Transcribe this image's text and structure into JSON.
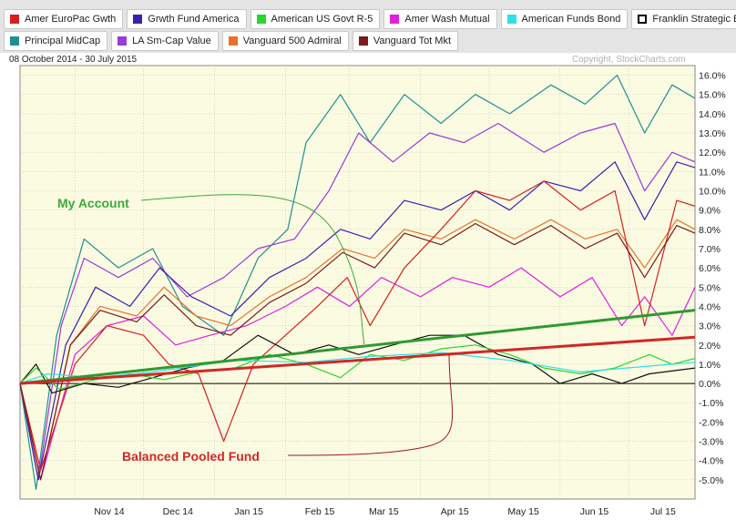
{
  "legend": {
    "row1": [
      {
        "label": "Amer EuroPac Gwth",
        "color": "#d81e1e"
      },
      {
        "label": "Grwth Fund America",
        "color": "#3b1fb0"
      },
      {
        "label": "American US Govt R-5",
        "color": "#2ad62a"
      },
      {
        "label": "Amer Wash Mutual",
        "color": "#e01ee0"
      },
      {
        "label": "American Funds Bond",
        "color": "#2ee0e8"
      },
      {
        "label": "Franklin Strategic B",
        "color": "#000000",
        "outline": true
      }
    ],
    "row2": [
      {
        "label": "Principal MidCap",
        "color": "#1e9090"
      },
      {
        "label": "LA Sm-Cap Value",
        "color": "#9a3ad8"
      },
      {
        "label": "Vanguard 500 Admiral",
        "color": "#e8722a"
      },
      {
        "label": "Vanguard Tot Mkt",
        "color": "#7a1a1a"
      }
    ]
  },
  "header": {
    "date_range": "08 October 2014 - 30 July 2015",
    "copyright": "Copyright, StockCharts.com"
  },
  "annotations": {
    "my_account": {
      "text": "My Account",
      "color": "#3aaa3a"
    },
    "balanced_fund": {
      "text": "Balanced Pooled Fund",
      "color": "#d02828"
    }
  },
  "colors": {
    "plot_bg": "#fbfbe2",
    "grid": "#bfbfbf",
    "zero_line": "#000000"
  },
  "chart_data": {
    "type": "line",
    "x_range": [
      "2014-10-08",
      "2015-07-30"
    ],
    "x_tick_labels": [
      "Nov 14",
      "Dec 14",
      "Jan 15",
      "Feb 15",
      "Mar 15",
      "Apr 15",
      "May 15",
      "Jun 15",
      "Jul 15"
    ],
    "x_tick_dates": [
      "2014-11-01",
      "2014-12-01",
      "2015-01-01",
      "2015-02-01",
      "2015-03-01",
      "2015-04-01",
      "2015-05-01",
      "2015-06-01",
      "2015-07-01"
    ],
    "ylim": [
      -6.0,
      16.5
    ],
    "y_ticks": [
      -5,
      -4,
      -3,
      -2,
      -1,
      0,
      1,
      2,
      3,
      4,
      5,
      6,
      7,
      8,
      9,
      10,
      11,
      12,
      13,
      14,
      15,
      16
    ],
    "y_tick_labels": [
      "-5.0%",
      "-4.0%",
      "-3.0%",
      "-2.0%",
      "-1.0%",
      "0.0%",
      "1.0%",
      "2.0%",
      "3.0%",
      "4.0%",
      "5.0%",
      "6.0%",
      "7.0%",
      "8.0%",
      "9.0%",
      "10.0%",
      "11.0%",
      "12.0%",
      "13.0%",
      "14.0%",
      "15.0%",
      "16.0%"
    ],
    "y_unit": "%",
    "y_axis_side": "right",
    "grid": true,
    "series": [
      {
        "name": "Principal MidCap",
        "color": "#1e9090",
        "points": [
          [
            "2014-10-08",
            0
          ],
          [
            "2014-10-15",
            -5.5
          ],
          [
            "2014-10-24",
            2.5
          ],
          [
            "2014-11-05",
            7.5
          ],
          [
            "2014-11-20",
            6.0
          ],
          [
            "2014-12-05",
            7.0
          ],
          [
            "2014-12-18",
            4.0
          ],
          [
            "2015-01-05",
            2.5
          ],
          [
            "2015-01-20",
            6.5
          ],
          [
            "2015-02-02",
            8.0
          ],
          [
            "2015-02-10",
            12.5
          ],
          [
            "2015-02-25",
            15.0
          ],
          [
            "2015-03-10",
            12.5
          ],
          [
            "2015-03-25",
            15.0
          ],
          [
            "2015-04-10",
            13.5
          ],
          [
            "2015-04-25",
            15.0
          ],
          [
            "2015-05-10",
            14.0
          ],
          [
            "2015-05-28",
            15.5
          ],
          [
            "2015-06-12",
            14.5
          ],
          [
            "2015-06-26",
            16.0
          ],
          [
            "2015-07-08",
            13.0
          ],
          [
            "2015-07-20",
            15.5
          ],
          [
            "2015-07-30",
            14.8
          ]
        ]
      },
      {
        "name": "LA Sm-Cap Value",
        "color": "#9a3ad8",
        "points": [
          [
            "2014-10-08",
            0
          ],
          [
            "2014-10-16",
            -5.0
          ],
          [
            "2014-10-26",
            3.0
          ],
          [
            "2014-11-05",
            6.5
          ],
          [
            "2014-11-20",
            5.5
          ],
          [
            "2014-12-05",
            6.5
          ],
          [
            "2014-12-20",
            4.5
          ],
          [
            "2015-01-05",
            5.5
          ],
          [
            "2015-01-20",
            7.0
          ],
          [
            "2015-02-05",
            7.5
          ],
          [
            "2015-02-20",
            10.0
          ],
          [
            "2015-03-05",
            13.0
          ],
          [
            "2015-03-20",
            11.5
          ],
          [
            "2015-04-05",
            13.0
          ],
          [
            "2015-04-20",
            12.5
          ],
          [
            "2015-05-05",
            13.5
          ],
          [
            "2015-05-25",
            12.0
          ],
          [
            "2015-06-10",
            13.0
          ],
          [
            "2015-06-25",
            13.5
          ],
          [
            "2015-07-08",
            10.0
          ],
          [
            "2015-07-20",
            12.0
          ],
          [
            "2015-07-30",
            11.5
          ]
        ]
      },
      {
        "name": "Grwth Fund America",
        "color": "#3b1fb0",
        "points": [
          [
            "2014-10-08",
            0
          ],
          [
            "2014-10-16",
            -5.0
          ],
          [
            "2014-10-28",
            2.0
          ],
          [
            "2014-11-10",
            5.0
          ],
          [
            "2014-11-25",
            4.0
          ],
          [
            "2014-12-08",
            6.0
          ],
          [
            "2014-12-22",
            4.5
          ],
          [
            "2015-01-08",
            3.5
          ],
          [
            "2015-01-25",
            5.5
          ],
          [
            "2015-02-10",
            6.5
          ],
          [
            "2015-02-25",
            8.0
          ],
          [
            "2015-03-10",
            7.5
          ],
          [
            "2015-03-25",
            9.5
          ],
          [
            "2015-04-10",
            9.0
          ],
          [
            "2015-04-25",
            10.0
          ],
          [
            "2015-05-10",
            9.0
          ],
          [
            "2015-05-25",
            10.5
          ],
          [
            "2015-06-10",
            10.0
          ],
          [
            "2015-06-25",
            11.5
          ],
          [
            "2015-07-08",
            8.5
          ],
          [
            "2015-07-22",
            11.5
          ],
          [
            "2015-07-30",
            11.2
          ]
        ]
      },
      {
        "name": "Vanguard 500 Admiral",
        "color": "#e8722a",
        "points": [
          [
            "2014-10-08",
            0
          ],
          [
            "2014-10-17",
            -5.0
          ],
          [
            "2014-10-30",
            2.0
          ],
          [
            "2014-11-12",
            4.0
          ],
          [
            "2014-11-28",
            3.5
          ],
          [
            "2014-12-10",
            5.0
          ],
          [
            "2014-12-24",
            3.5
          ],
          [
            "2015-01-08",
            3.0
          ],
          [
            "2015-01-25",
            4.5
          ],
          [
            "2015-02-10",
            5.5
          ],
          [
            "2015-02-26",
            7.0
          ],
          [
            "2015-03-12",
            6.5
          ],
          [
            "2015-03-25",
            8.0
          ],
          [
            "2015-04-10",
            7.5
          ],
          [
            "2015-04-25",
            8.5
          ],
          [
            "2015-05-12",
            7.5
          ],
          [
            "2015-05-28",
            8.5
          ],
          [
            "2015-06-12",
            7.5
          ],
          [
            "2015-06-26",
            8.0
          ],
          [
            "2015-07-08",
            6.0
          ],
          [
            "2015-07-22",
            8.5
          ],
          [
            "2015-07-30",
            8.0
          ]
        ]
      },
      {
        "name": "Amer Wash Mutual",
        "color": "#e01ee0",
        "points": [
          [
            "2014-10-08",
            0
          ],
          [
            "2014-10-17",
            -5.0
          ],
          [
            "2014-11-01",
            1.5
          ],
          [
            "2014-11-15",
            3.0
          ],
          [
            "2014-12-01",
            3.5
          ],
          [
            "2014-12-15",
            2.0
          ],
          [
            "2014-12-30",
            2.5
          ],
          [
            "2015-01-15",
            3.0
          ],
          [
            "2015-02-01",
            4.0
          ],
          [
            "2015-02-15",
            5.0
          ],
          [
            "2015-03-01",
            4.0
          ],
          [
            "2015-03-15",
            5.5
          ],
          [
            "2015-04-01",
            4.5
          ],
          [
            "2015-04-15",
            5.5
          ],
          [
            "2015-05-01",
            5.0
          ],
          [
            "2015-05-15",
            6.0
          ],
          [
            "2015-06-01",
            4.5
          ],
          [
            "2015-06-15",
            5.5
          ],
          [
            "2015-06-28",
            3.0
          ],
          [
            "2015-07-08",
            4.5
          ],
          [
            "2015-07-20",
            2.5
          ],
          [
            "2015-07-30",
            5.0
          ]
        ]
      },
      {
        "name": "Amer EuroPac Gwth",
        "color": "#d81e1e",
        "points": [
          [
            "2014-10-08",
            0
          ],
          [
            "2014-10-17",
            -4.5
          ],
          [
            "2014-11-01",
            1.0
          ],
          [
            "2014-11-15",
            3.0
          ],
          [
            "2014-12-01",
            2.5
          ],
          [
            "2014-12-12",
            1.0
          ],
          [
            "2014-12-25",
            0.5
          ],
          [
            "2015-01-05",
            -3.0
          ],
          [
            "2015-01-18",
            1.0
          ],
          [
            "2015-02-01",
            2.5
          ],
          [
            "2015-02-15",
            4.0
          ],
          [
            "2015-02-28",
            5.5
          ],
          [
            "2015-03-10",
            3.0
          ],
          [
            "2015-03-25",
            6.0
          ],
          [
            "2015-04-10",
            8.0
          ],
          [
            "2015-04-25",
            10.0
          ],
          [
            "2015-05-10",
            9.5
          ],
          [
            "2015-05-25",
            10.5
          ],
          [
            "2015-06-10",
            9.0
          ],
          [
            "2015-06-25",
            10.0
          ],
          [
            "2015-07-08",
            3.0
          ],
          [
            "2015-07-22",
            9.5
          ],
          [
            "2015-07-30",
            9.2
          ]
        ]
      },
      {
        "name": "Vanguard Tot Mkt",
        "color": "#7a1a1a",
        "points": [
          [
            "2014-10-08",
            0
          ],
          [
            "2014-10-17",
            -5.0
          ],
          [
            "2014-10-30",
            2.0
          ],
          [
            "2014-11-12",
            3.8
          ],
          [
            "2014-11-28",
            3.2
          ],
          [
            "2014-12-10",
            4.6
          ],
          [
            "2014-12-24",
            3.0
          ],
          [
            "2015-01-08",
            2.5
          ],
          [
            "2015-01-25",
            4.2
          ],
          [
            "2015-02-10",
            5.2
          ],
          [
            "2015-02-26",
            6.8
          ],
          [
            "2015-03-12",
            6.0
          ],
          [
            "2015-03-25",
            7.8
          ],
          [
            "2015-04-10",
            7.2
          ],
          [
            "2015-04-25",
            8.3
          ],
          [
            "2015-05-12",
            7.2
          ],
          [
            "2015-05-28",
            8.2
          ],
          [
            "2015-06-12",
            7.0
          ],
          [
            "2015-06-26",
            7.8
          ],
          [
            "2015-07-08",
            5.5
          ],
          [
            "2015-07-22",
            8.2
          ],
          [
            "2015-07-30",
            7.8
          ]
        ]
      },
      {
        "name": "Franklin Strategic B",
        "color": "#111111",
        "points": [
          [
            "2014-10-08",
            0
          ],
          [
            "2014-10-15",
            1.0
          ],
          [
            "2014-10-22",
            -0.5
          ],
          [
            "2014-11-05",
            0
          ],
          [
            "2014-11-20",
            -0.2
          ],
          [
            "2014-12-05",
            0.3
          ],
          [
            "2014-12-20",
            0.8
          ],
          [
            "2015-01-05",
            1.2
          ],
          [
            "2015-01-20",
            2.5
          ],
          [
            "2015-02-05",
            1.5
          ],
          [
            "2015-02-20",
            2.0
          ],
          [
            "2015-03-05",
            1.5
          ],
          [
            "2015-03-20",
            2.0
          ],
          [
            "2015-04-05",
            2.5
          ],
          [
            "2015-04-20",
            2.5
          ],
          [
            "2015-05-05",
            1.5
          ],
          [
            "2015-05-20",
            1.0
          ],
          [
            "2015-06-01",
            0
          ],
          [
            "2015-06-15",
            0.5
          ],
          [
            "2015-06-28",
            0
          ],
          [
            "2015-07-10",
            0.5
          ],
          [
            "2015-07-30",
            0.8
          ]
        ]
      },
      {
        "name": "American US Govt R-5",
        "color": "#2ad62a",
        "points": [
          [
            "2014-10-08",
            0
          ],
          [
            "2014-10-15",
            0.8
          ],
          [
            "2014-10-25",
            -0.3
          ],
          [
            "2014-11-10",
            0.2
          ],
          [
            "2014-11-25",
            0.5
          ],
          [
            "2014-12-10",
            0.2
          ],
          [
            "2014-12-25",
            0.6
          ],
          [
            "2015-01-10",
            0.8
          ],
          [
            "2015-01-25",
            1.5
          ],
          [
            "2015-02-10",
            1.0
          ],
          [
            "2015-02-25",
            0.3
          ],
          [
            "2015-03-10",
            1.5
          ],
          [
            "2015-03-25",
            1.2
          ],
          [
            "2015-04-10",
            1.8
          ],
          [
            "2015-04-25",
            2.0
          ],
          [
            "2015-05-10",
            1.5
          ],
          [
            "2015-05-25",
            0.8
          ],
          [
            "2015-06-10",
            0.5
          ],
          [
            "2015-06-25",
            0.8
          ],
          [
            "2015-07-10",
            1.5
          ],
          [
            "2015-07-20",
            1.0
          ],
          [
            "2015-07-30",
            1.3
          ]
        ]
      },
      {
        "name": "American Funds Bond",
        "color": "#2ee0e8",
        "points": [
          [
            "2014-10-08",
            0
          ],
          [
            "2014-10-20",
            0.5
          ],
          [
            "2014-11-10",
            0.3
          ],
          [
            "2014-12-05",
            0.6
          ],
          [
            "2015-01-10",
            1.2
          ],
          [
            "2015-02-10",
            1.1
          ],
          [
            "2015-03-10",
            1.4
          ],
          [
            "2015-04-10",
            1.6
          ],
          [
            "2015-05-10",
            1.2
          ],
          [
            "2015-06-10",
            0.6
          ],
          [
            "2015-07-10",
            0.9
          ],
          [
            "2015-07-30",
            1.1
          ]
        ]
      }
    ],
    "trend_lines": [
      {
        "label": "My Account",
        "color": "#2f9a2f",
        "from": [
          "2014-10-08",
          0.0
        ],
        "to": [
          "2015-07-30",
          3.8
        ]
      },
      {
        "label": "Balanced Pooled Fund",
        "color": "#d02828",
        "from": [
          "2014-10-08",
          0.0
        ],
        "to": [
          "2015-07-30",
          2.4
        ]
      }
    ]
  }
}
